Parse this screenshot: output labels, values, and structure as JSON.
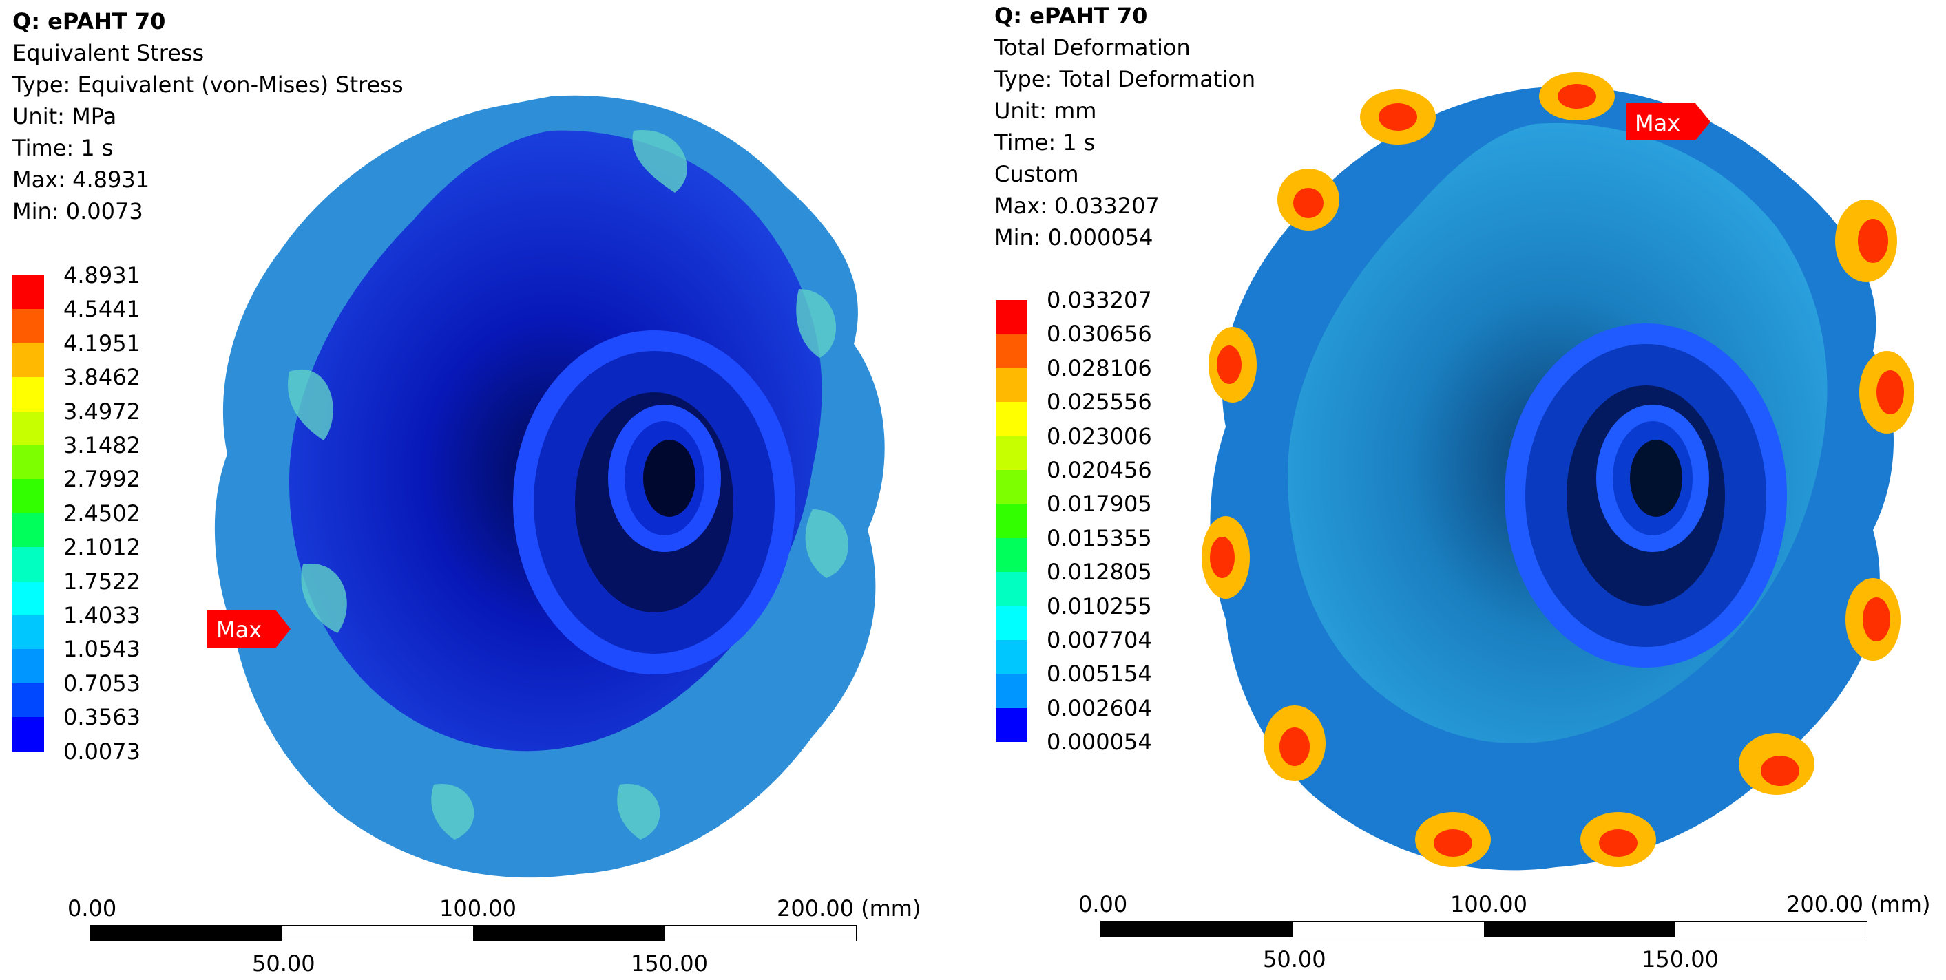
{
  "panels": [
    {
      "info": {
        "title": "Q: ePAHT 70",
        "lines": [
          "Equivalent Stress",
          "Type: Equivalent (von-Mises) Stress",
          "Unit: MPa",
          "Time: 1 s",
          "Max: 4.8931",
          "Min: 0.0073"
        ]
      },
      "legend": [
        "4.8931",
        "4.5441",
        "4.1951",
        "3.8462",
        "3.4972",
        "3.1482",
        "2.7992",
        "2.4502",
        "2.1012",
        "1.7522",
        "1.4033",
        "1.0543",
        "0.7053",
        "0.3563",
        "0.0073"
      ],
      "max_label": "Max",
      "scale": {
        "top": [
          "0.00",
          "100.00",
          "200.00 (mm)"
        ],
        "bottom": [
          "50.00",
          "150.00"
        ]
      }
    },
    {
      "info": {
        "title": "Q: ePAHT 70",
        "lines": [
          "Total Deformation",
          "Type: Total Deformation",
          "Unit: mm",
          "Time: 1 s",
          "Custom",
          "Max: 0.033207",
          "Min: 0.000054"
        ]
      },
      "legend": [
        "0.033207",
        "0.030656",
        "0.028106",
        "0.025556",
        "0.023006",
        "0.020456",
        "0.017905",
        "0.015355",
        "0.012805",
        "0.010255",
        "0.007704",
        "0.005154",
        "0.002604",
        "0.000054"
      ],
      "max_label": "Max",
      "scale": {
        "top": [
          "0.00",
          "100.00",
          "200.00 (mm)"
        ],
        "bottom": [
          "50.00",
          "150.00"
        ]
      }
    }
  ],
  "colors": {
    "legend_scale": [
      "#ff0000",
      "#ff5c00",
      "#ffb900",
      "#ffff00",
      "#c8ff00",
      "#7dff00",
      "#32ff00",
      "#00ff5a",
      "#00ffc0",
      "#00ffff",
      "#00c8ff",
      "#0096ff",
      "#0048ff",
      "#0000ff"
    ],
    "max_marker": "#ff0000"
  }
}
